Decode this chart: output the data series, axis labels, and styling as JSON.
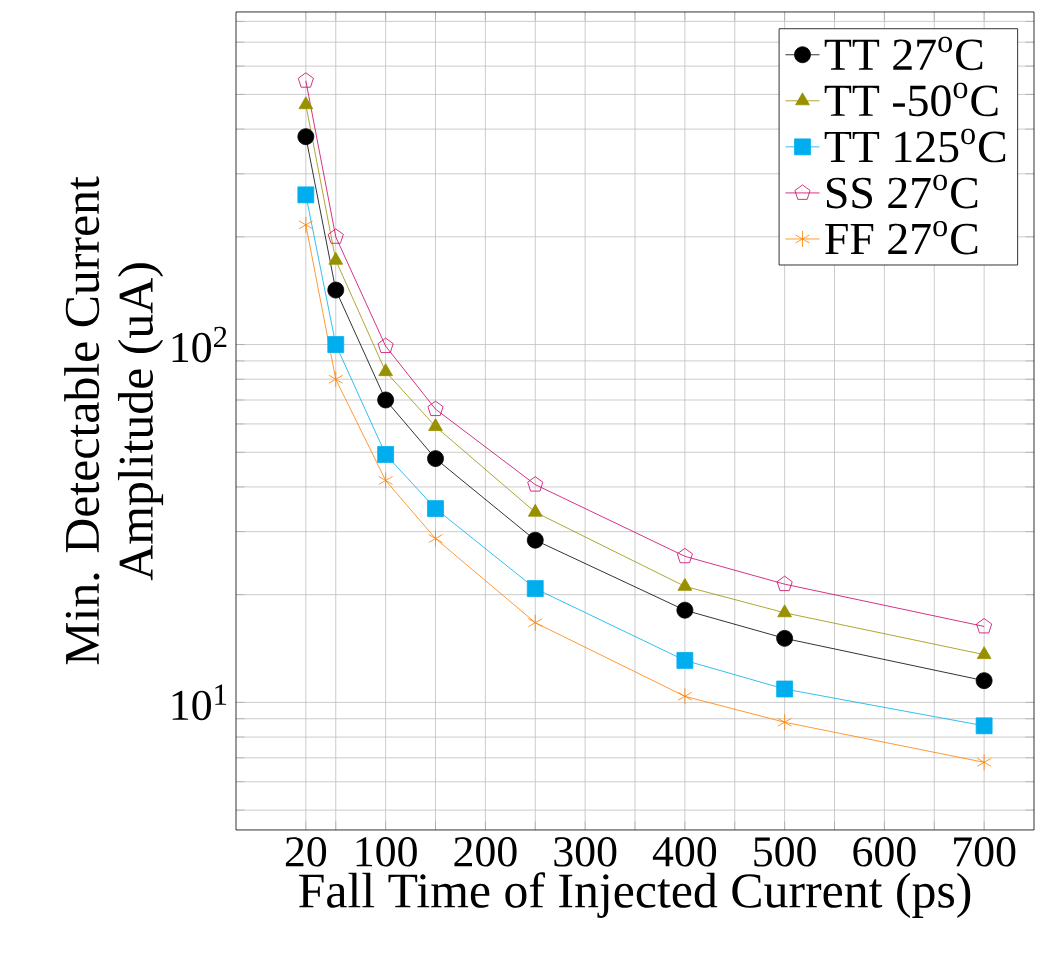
{
  "chart_data": {
    "type": "line",
    "xlabel": "Fall Time of Injected Current (ps)",
    "ylabel": "Min. Detectable Current Amplitude (uA)",
    "x": [
      20,
      50,
      100,
      150,
      250,
      400,
      500,
      700
    ],
    "series": [
      {
        "name": "TT 27$^{o}$C",
        "color": "#000000",
        "marker": "circle",
        "values": [
          381,
          142,
          70,
          48,
          28.4,
          18.1,
          15.1,
          11.5
        ]
      },
      {
        "name": "TT -50$^{o}$C",
        "color": "#999000",
        "marker": "triangle",
        "values": [
          468,
          172,
          84,
          59,
          34,
          21.1,
          17.8,
          13.6
        ]
      },
      {
        "name": "TT 125$^{o}$C",
        "color": "#00aeef",
        "marker": "square",
        "values": [
          262,
          100,
          49.3,
          34.8,
          20.8,
          13.1,
          10.9,
          8.6
        ]
      },
      {
        "name": "SS 27$^{o}$C",
        "color": "#cc0066",
        "marker": "star",
        "values": [
          546,
          200,
          99,
          66,
          40.6,
          25.6,
          21.4,
          16.3
        ]
      },
      {
        "name": "FF 27$^{o}$C",
        "color": "#ff8000",
        "marker": "cross",
        "values": [
          216,
          80,
          41.7,
          28.7,
          16.7,
          10.4,
          8.8,
          6.8
        ]
      }
    ],
    "xlim": [
      -50,
      750
    ],
    "xticks": [
      20,
      {
        "value": 50,
        "label": null
      },
      100,
      {
        "value": 150,
        "label": null
      },
      200,
      {
        "value": 250,
        "label": null
      },
      300,
      {
        "value": 350,
        "label": null
      },
      400,
      {
        "value": 450,
        "label": null
      },
      500,
      {
        "value": 550,
        "label": null
      },
      600,
      {
        "value": 650,
        "label": null
      },
      700
    ],
    "ylim": [
      4.4,
      850
    ],
    "yticks": [
      {
        "value": 5,
        "label": null
      },
      {
        "value": 6,
        "label": null
      },
      {
        "value": 7,
        "label": null
      },
      {
        "value": 8,
        "label": null
      },
      {
        "value": 9,
        "label": null
      },
      {
        "value": 10,
        "label": "10$^{1}$"
      },
      {
        "value": 20,
        "label": null
      },
      {
        "value": 30,
        "label": null
      },
      {
        "value": 40,
        "label": null
      },
      {
        "value": 50,
        "label": null
      },
      {
        "value": 60,
        "label": null
      },
      {
        "value": 70,
        "label": null
      },
      {
        "value": 80,
        "label": null
      },
      {
        "value": 90,
        "label": null
      },
      {
        "value": 100,
        "label": "10$^{2}$"
      },
      {
        "value": 200,
        "label": null
      },
      {
        "value": 300,
        "label": null
      },
      {
        "value": 400,
        "label": null
      },
      {
        "value": 500,
        "label": null
      },
      {
        "value": 600,
        "label": null
      },
      {
        "value": 700,
        "label": null
      },
      {
        "value": 800,
        "label": null
      }
    ],
    "log": "y",
    "grid": true,
    "legend": "top right",
    "line_style": "solid"
  }
}
